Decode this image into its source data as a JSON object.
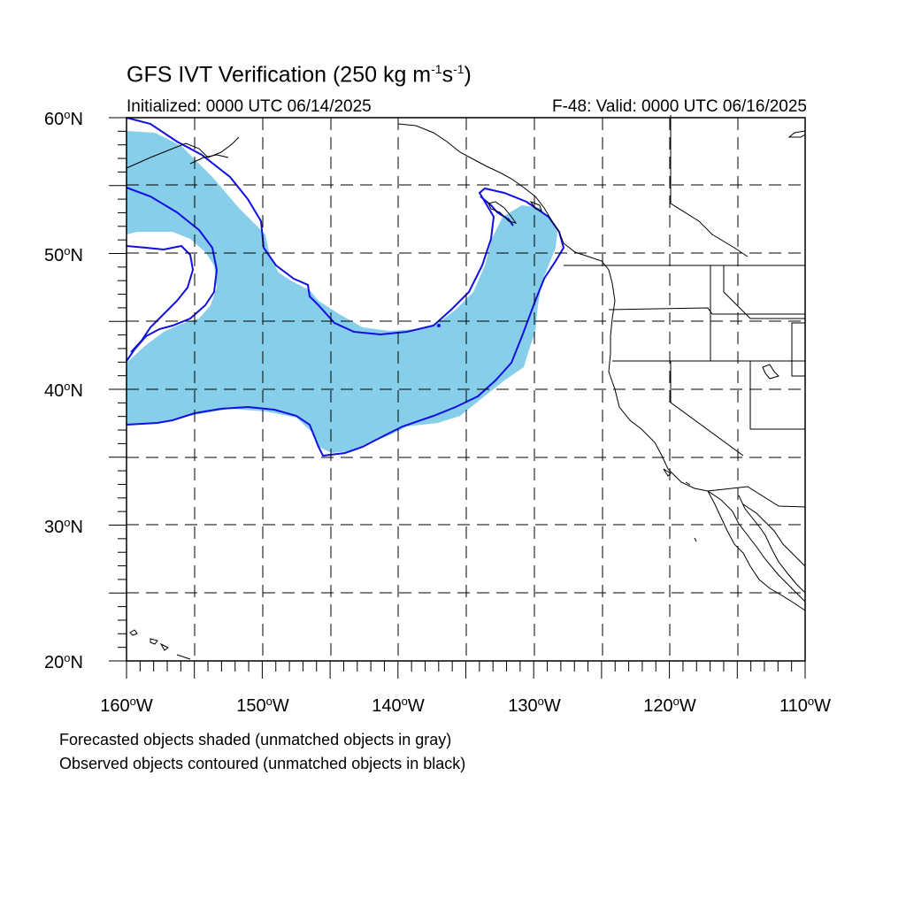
{
  "title": {
    "main": "GFS IVT Verification (250 kg m",
    "exp1": "-1",
    "mid": "s",
    "exp2": "-1",
    "end": ")"
  },
  "initialized": "Initialized: 0000 UTC 06/14/2025",
  "valid": "F-48: Valid: 0000 UTC 06/16/2025",
  "map": {
    "lon_range": [
      -160,
      -110
    ],
    "lat_range": [
      20,
      60
    ],
    "grid": "dashed every 5 degrees",
    "lat_labels": [
      {
        "lat": 60,
        "num": "60",
        "deg": "o",
        "hem": "N"
      },
      {
        "lat": 50,
        "num": "50",
        "deg": "o",
        "hem": "N"
      },
      {
        "lat": 40,
        "num": "40",
        "deg": "o",
        "hem": "N"
      },
      {
        "lat": 30,
        "num": "30",
        "deg": "o",
        "hem": "N"
      },
      {
        "lat": 20,
        "num": "20",
        "deg": "o",
        "hem": "N"
      }
    ],
    "lon_labels": [
      {
        "lon": -160,
        "num": "160",
        "deg": "o",
        "hem": "W"
      },
      {
        "lon": -150,
        "num": "150",
        "deg": "o",
        "hem": "W"
      },
      {
        "lon": -140,
        "num": "140",
        "deg": "o",
        "hem": "W"
      },
      {
        "lon": -130,
        "num": "130",
        "deg": "o",
        "hem": "W"
      },
      {
        "lon": -120,
        "num": "120",
        "deg": "o",
        "hem": "W"
      },
      {
        "lon": -110,
        "num": "110",
        "deg": "o",
        "hem": "W"
      }
    ],
    "colors": {
      "forecast_fill": "#87ceeb",
      "observed_contour": "#1010e0",
      "coastline": "#000000",
      "grid": "#000000"
    }
  },
  "captions": {
    "line1": "Forecasted objects shaded (unmatched objects in gray)",
    "line2": "Observed objects contoured (unmatched objects in black)"
  }
}
